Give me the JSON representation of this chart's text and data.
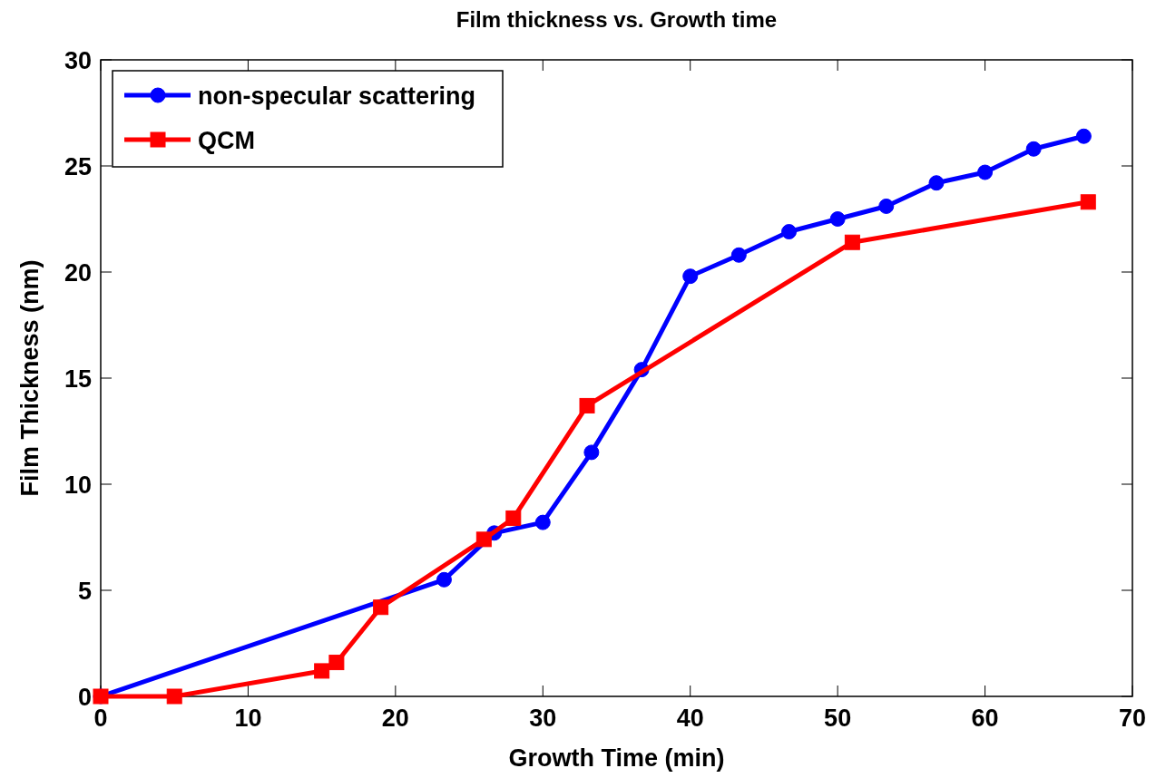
{
  "chart_data": {
    "type": "line",
    "title": "Film thickness vs. Growth time",
    "xlabel": "Growth Time (min)",
    "ylabel": "Film Thickness (nm)",
    "xlim": [
      0,
      70
    ],
    "xticks": [
      0,
      10,
      20,
      30,
      40,
      50,
      60,
      70
    ],
    "ylim": [
      0,
      30
    ],
    "yticks": [
      0,
      5,
      10,
      15,
      20,
      25,
      30
    ],
    "grid": false,
    "legend": "top left",
    "series": [
      {
        "name": "non-specular scattering",
        "color": "#0000ff",
        "marker": "circle",
        "x": [
          0,
          23.3,
          26.7,
          30,
          33.3,
          36.7,
          40,
          43.3,
          46.7,
          50,
          53.3,
          56.7,
          60,
          63.3,
          66.7
        ],
        "values": [
          0,
          5.5,
          7.7,
          8.2,
          11.5,
          15.4,
          19.8,
          20.8,
          21.9,
          22.5,
          23.1,
          24.2,
          24.7,
          25.8,
          26.4
        ]
      },
      {
        "name": "QCM",
        "color": "#ff0000",
        "marker": "square",
        "x": [
          0,
          5,
          15,
          16,
          19,
          26,
          28,
          33,
          51,
          67
        ],
        "values": [
          0,
          0,
          1.2,
          1.6,
          4.2,
          7.4,
          8.4,
          13.7,
          21.4,
          23.3
        ]
      }
    ]
  }
}
